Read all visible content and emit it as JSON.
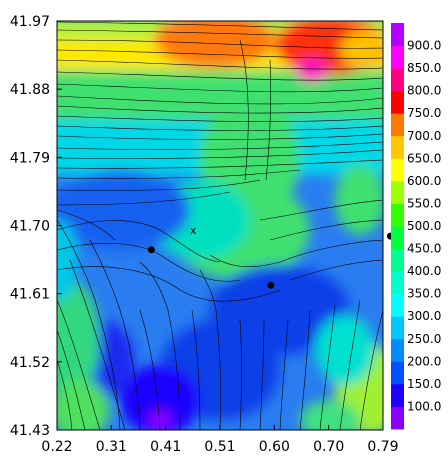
{
  "map": {
    "x_ticks": [
      "0.22",
      "0.31",
      "0.41",
      "0.51",
      "0.60",
      "0.70",
      "0.79"
    ],
    "y_ticks": [
      "41.97",
      "41.88",
      "41.79",
      "41.70",
      "41.61",
      "41.52",
      "41.43"
    ],
    "xlim": [
      0.22,
      0.79
    ],
    "ylim": [
      41.43,
      41.97
    ],
    "markers": [
      {
        "x": 0.385,
        "y": 41.668
      },
      {
        "x": 0.594,
        "y": 41.621
      },
      {
        "x": 0.803,
        "y": 41.686
      }
    ],
    "annotation": {
      "text": "x",
      "x": 0.458,
      "y": 41.694
    }
  },
  "colorbar": {
    "labels": [
      "100.0",
      "150.0",
      "200.0",
      "250.0",
      "300.0",
      "350.0",
      "400.0",
      "450.0",
      "500.0",
      "550.0",
      "600.0",
      "650.0",
      "700.0",
      "750.0",
      "800.0",
      "850.0",
      "900.0"
    ],
    "colors": [
      "#8a00ff",
      "#1e00ff",
      "#0050ff",
      "#008cff",
      "#00c8ff",
      "#00ffff",
      "#00ffcc",
      "#00ff8c",
      "#00ff3c",
      "#32ff00",
      "#a0ff00",
      "#ffff00",
      "#ffc800",
      "#ff7800",
      "#ff0000",
      "#ff0080",
      "#ff00ff",
      "#b400ff"
    ]
  }
}
